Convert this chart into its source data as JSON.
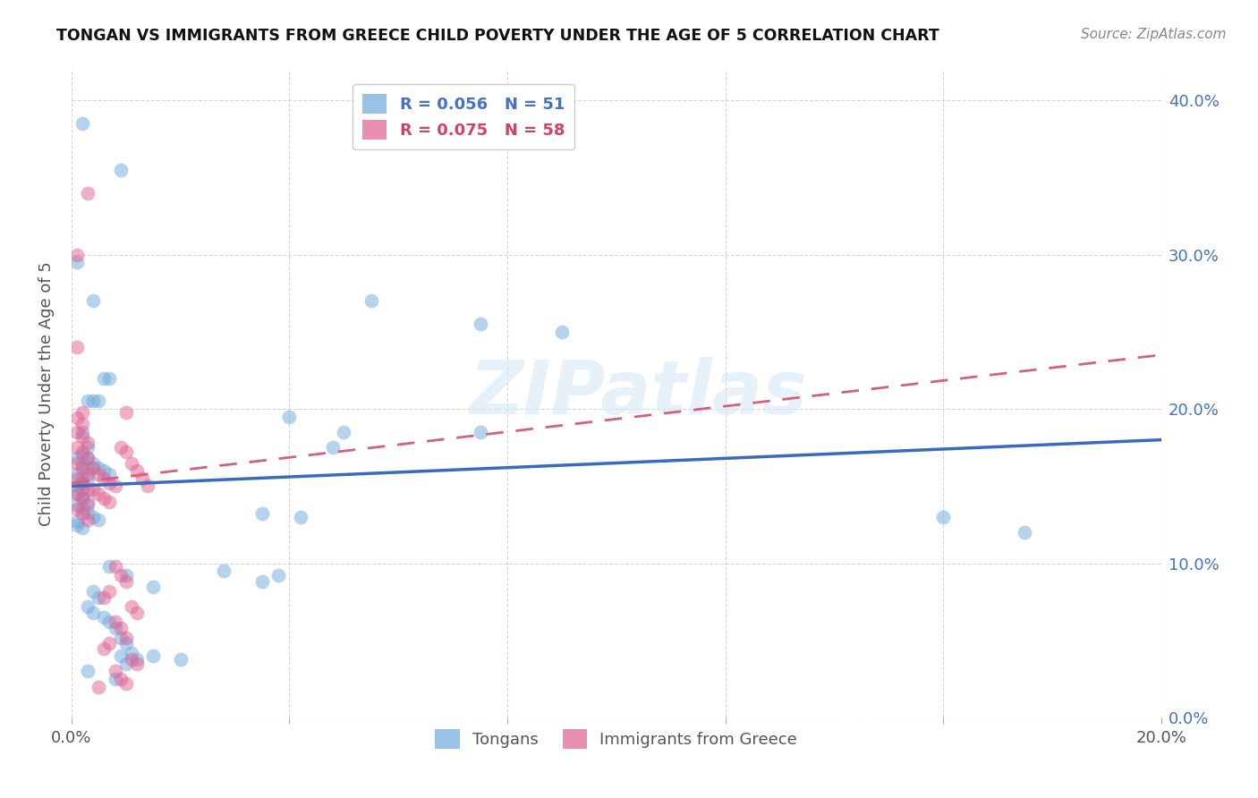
{
  "title": "TONGAN VS IMMIGRANTS FROM GREECE CHILD POVERTY UNDER THE AGE OF 5 CORRELATION CHART",
  "source": "Source: ZipAtlas.com",
  "ylabel": "Child Poverty Under the Age of 5",
  "xlim": [
    0.0,
    0.2
  ],
  "ylim": [
    0.0,
    0.42
  ],
  "xtick_vals": [
    0.0,
    0.04,
    0.08,
    0.12,
    0.16,
    0.2
  ],
  "xtick_labels": [
    "0.0%",
    "",
    "",
    "",
    "",
    "20.0%"
  ],
  "ytick_vals": [
    0.0,
    0.1,
    0.2,
    0.3,
    0.4
  ],
  "ytick_labels_right": [
    "0.0%",
    "10.0%",
    "20.0%",
    "30.0%",
    "40.0%"
  ],
  "tongan_color": "#6fa8dc",
  "greece_color": "#e06090",
  "tongan_line_color": "#3a6abf",
  "greece_line_color": "#d46080",
  "tongan_line": {
    "x0": 0.0,
    "y0": 0.15,
    "x1": 0.2,
    "y1": 0.18
  },
  "greece_line": {
    "x0": 0.0,
    "y0": 0.152,
    "x1": 0.2,
    "y1": 0.235
  },
  "watermark": "ZIPatlas",
  "legend_labels_bottom": [
    "Tongans",
    "Immigrants from Greece"
  ],
  "tongan_points": [
    [
      0.002,
      0.385
    ],
    [
      0.009,
      0.355
    ],
    [
      0.004,
      0.27
    ],
    [
      0.006,
      0.22
    ],
    [
      0.007,
      0.22
    ],
    [
      0.001,
      0.295
    ],
    [
      0.055,
      0.27
    ],
    [
      0.075,
      0.255
    ],
    [
      0.09,
      0.25
    ],
    [
      0.05,
      0.185
    ],
    [
      0.075,
      0.185
    ],
    [
      0.04,
      0.195
    ],
    [
      0.048,
      0.175
    ],
    [
      0.035,
      0.132
    ],
    [
      0.042,
      0.13
    ],
    [
      0.16,
      0.13
    ],
    [
      0.175,
      0.12
    ],
    [
      0.003,
      0.205
    ],
    [
      0.004,
      0.205
    ],
    [
      0.005,
      0.205
    ],
    [
      0.002,
      0.185
    ],
    [
      0.003,
      0.175
    ],
    [
      0.001,
      0.168
    ],
    [
      0.002,
      0.165
    ],
    [
      0.003,
      0.162
    ],
    [
      0.001,
      0.158
    ],
    [
      0.002,
      0.156
    ],
    [
      0.003,
      0.155
    ],
    [
      0.002,
      0.152
    ],
    [
      0.001,
      0.15
    ],
    [
      0.002,
      0.148
    ],
    [
      0.001,
      0.145
    ],
    [
      0.002,
      0.143
    ],
    [
      0.003,
      0.14
    ],
    [
      0.001,
      0.138
    ],
    [
      0.002,
      0.136
    ],
    [
      0.003,
      0.133
    ],
    [
      0.004,
      0.13
    ],
    [
      0.005,
      0.128
    ],
    [
      0.001,
      0.127
    ],
    [
      0.002,
      0.17
    ],
    [
      0.003,
      0.168
    ],
    [
      0.004,
      0.165
    ],
    [
      0.005,
      0.162
    ],
    [
      0.006,
      0.16
    ],
    [
      0.007,
      0.158
    ],
    [
      0.001,
      0.125
    ],
    [
      0.002,
      0.123
    ],
    [
      0.007,
      0.098
    ],
    [
      0.01,
      0.092
    ],
    [
      0.015,
      0.085
    ],
    [
      0.004,
      0.082
    ],
    [
      0.005,
      0.078
    ],
    [
      0.003,
      0.072
    ],
    [
      0.004,
      0.068
    ],
    [
      0.006,
      0.065
    ],
    [
      0.007,
      0.062
    ],
    [
      0.008,
      0.058
    ],
    [
      0.009,
      0.052
    ],
    [
      0.01,
      0.048
    ],
    [
      0.009,
      0.04
    ],
    [
      0.01,
      0.035
    ],
    [
      0.003,
      0.03
    ],
    [
      0.008,
      0.025
    ],
    [
      0.011,
      0.042
    ],
    [
      0.012,
      0.038
    ],
    [
      0.035,
      0.088
    ],
    [
      0.038,
      0.092
    ],
    [
      0.028,
      0.095
    ],
    [
      0.015,
      0.04
    ],
    [
      0.02,
      0.038
    ]
  ],
  "greece_points": [
    [
      0.001,
      0.3
    ],
    [
      0.003,
      0.34
    ],
    [
      0.001,
      0.24
    ],
    [
      0.002,
      0.198
    ],
    [
      0.001,
      0.194
    ],
    [
      0.002,
      0.19
    ],
    [
      0.001,
      0.185
    ],
    [
      0.002,
      0.182
    ],
    [
      0.003,
      0.178
    ],
    [
      0.001,
      0.175
    ],
    [
      0.002,
      0.172
    ],
    [
      0.003,
      0.168
    ],
    [
      0.001,
      0.165
    ],
    [
      0.002,
      0.162
    ],
    [
      0.003,
      0.158
    ],
    [
      0.001,
      0.155
    ],
    [
      0.002,
      0.152
    ],
    [
      0.003,
      0.148
    ],
    [
      0.001,
      0.145
    ],
    [
      0.002,
      0.142
    ],
    [
      0.003,
      0.138
    ],
    [
      0.001,
      0.135
    ],
    [
      0.002,
      0.132
    ],
    [
      0.003,
      0.128
    ],
    [
      0.004,
      0.162
    ],
    [
      0.005,
      0.158
    ],
    [
      0.006,
      0.155
    ],
    [
      0.007,
      0.152
    ],
    [
      0.008,
      0.15
    ],
    [
      0.004,
      0.148
    ],
    [
      0.005,
      0.145
    ],
    [
      0.006,
      0.142
    ],
    [
      0.007,
      0.14
    ],
    [
      0.009,
      0.175
    ],
    [
      0.01,
      0.172
    ],
    [
      0.011,
      0.165
    ],
    [
      0.012,
      0.16
    ],
    [
      0.013,
      0.155
    ],
    [
      0.014,
      0.15
    ],
    [
      0.01,
      0.198
    ],
    [
      0.008,
      0.098
    ],
    [
      0.009,
      0.092
    ],
    [
      0.01,
      0.088
    ],
    [
      0.007,
      0.082
    ],
    [
      0.006,
      0.078
    ],
    [
      0.011,
      0.072
    ],
    [
      0.012,
      0.068
    ],
    [
      0.008,
      0.062
    ],
    [
      0.009,
      0.058
    ],
    [
      0.01,
      0.052
    ],
    [
      0.007,
      0.048
    ],
    [
      0.006,
      0.045
    ],
    [
      0.011,
      0.038
    ],
    [
      0.012,
      0.035
    ],
    [
      0.008,
      0.03
    ],
    [
      0.009,
      0.025
    ],
    [
      0.01,
      0.022
    ],
    [
      0.005,
      0.02
    ]
  ]
}
